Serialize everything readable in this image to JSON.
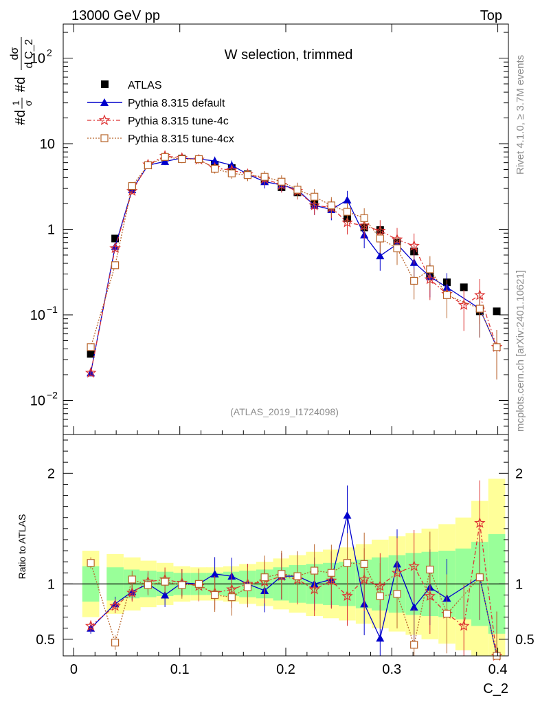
{
  "header": {
    "energy": "13000 GeV pp",
    "process": "Top"
  },
  "side": {
    "rivet": "Rivet 4.1.0, ≥ 3.7M events",
    "mcplots": "mcplots.cern.ch [arXiv:2401.10621]"
  },
  "chart_data": {
    "type": "scatter",
    "title": "W selection, trimmed",
    "analysis_id": "(ATLAS_2019_I1724098)",
    "xlabel": "C_2",
    "ylabel": "#d1/σ #dσ/d C_2",
    "ylabel_parts": {
      "a": "#d",
      "frac1_num": "1",
      "frac1_den": "σ",
      "b": "#d",
      "frac2_num": "dσ",
      "frac2_den": "d C_2"
    },
    "ratio_ylabel": "Ratio to ATLAS",
    "xlim": [
      -0.01,
      0.41
    ],
    "ylim_main": [
      0.004,
      250
    ],
    "ylim_ratio": [
      0.35,
      2.35
    ],
    "x_ticks": [
      "0",
      "0.1",
      "0.2",
      "0.3",
      "0.4"
    ],
    "y_ticks_main": [
      {
        "value": 0.01,
        "base": "10",
        "exp": "−2"
      },
      {
        "value": 0.1,
        "base": "10",
        "exp": "−1"
      },
      {
        "value": 1,
        "base": "1",
        "exp": ""
      },
      {
        "value": 10,
        "base": "10",
        "exp": ""
      },
      {
        "value": 100,
        "base": "10",
        "exp": "2"
      }
    ],
    "y_ticks_ratio": [
      "0.5",
      "1",
      "2"
    ],
    "x": [
      0.016,
      0.039,
      0.055,
      0.07,
      0.086,
      0.102,
      0.118,
      0.133,
      0.149,
      0.164,
      0.18,
      0.196,
      0.211,
      0.227,
      0.243,
      0.258,
      0.274,
      0.289,
      0.305,
      0.321,
      0.336,
      0.352,
      0.368,
      0.383,
      0.399
    ],
    "series": [
      {
        "name": "ATLAS",
        "color": "#000000",
        "marker": "square",
        "values": [
          0.035,
          0.78,
          3.1,
          5.6,
          6.9,
          6.7,
          6.6,
          5.7,
          5.2,
          4.4,
          3.8,
          3.1,
          2.7,
          2.0,
          1.75,
          1.35,
          1.05,
          0.98,
          0.7,
          0.55,
          0.3,
          0.24,
          0.21,
          0.11,
          0.11
        ],
        "ratio": [
          1,
          1,
          1,
          1,
          1,
          1,
          1,
          1,
          1,
          1,
          1,
          1,
          1,
          1,
          1,
          1,
          1,
          1,
          1,
          1,
          1,
          1,
          1,
          1,
          1
        ]
      },
      {
        "name": "Pythia 8.315 default",
        "color": "#0000cc",
        "marker": "triangle",
        "values": [
          0.021,
          0.63,
          2.9,
          5.6,
          6.2,
          6.8,
          6.6,
          6.3,
          5.6,
          4.4,
          3.6,
          3.3,
          2.9,
          1.9,
          1.7,
          2.2,
          0.86,
          0.49,
          0.67,
          0.41,
          0.28,
          0.21,
          null,
          0.118,
          0.042
        ],
        "ratio": [
          0.6,
          0.82,
          0.93,
          1.0,
          0.9,
          1.01,
          1.0,
          1.09,
          1.07,
          1.0,
          0.94,
          1.07,
          1.07,
          1.0,
          1.04,
          1.62,
          0.82,
          0.51,
          1.18,
          0.79,
          0.97,
          0.87,
          null,
          1.06,
          0.35
        ]
      },
      {
        "name": "Pythia 8.315 tune-4c",
        "color": "#dd3333",
        "marker": "star",
        "values": [
          0.021,
          0.6,
          2.8,
          5.7,
          7.2,
          6.8,
          6.5,
          5.2,
          4.9,
          4.4,
          3.9,
          3.3,
          2.8,
          1.9,
          1.8,
          1.2,
          1.1,
          0.96,
          0.76,
          0.64,
          0.26,
          0.175,
          0.13,
          0.17,
          0.042
        ],
        "ratio": [
          0.62,
          0.8,
          0.92,
          1.02,
          1.04,
          1.01,
          0.98,
          0.92,
          0.95,
          1.0,
          1.02,
          1.07,
          1.04,
          0.95,
          1.03,
          0.89,
          1.04,
          0.98,
          1.1,
          1.16,
          0.89,
          0.73,
          0.62,
          1.55,
          0.35
        ]
      },
      {
        "name": "Pythia 8.315 tune-4cx",
        "color": "#b8642a",
        "marker": "open-square",
        "values": [
          0.042,
          0.38,
          3.2,
          5.6,
          7.0,
          6.6,
          6.6,
          5.1,
          4.5,
          4.3,
          4.1,
          3.6,
          2.9,
          2.4,
          1.9,
          1.6,
          1.35,
          0.78,
          0.6,
          0.25,
          0.34,
          0.17,
          null,
          0.118,
          0.042
        ],
        "ratio": [
          1.19,
          0.47,
          1.04,
          0.99,
          1.02,
          0.99,
          1.0,
          0.9,
          0.88,
          0.97,
          1.06,
          1.09,
          1.07,
          1.12,
          1.1,
          1.19,
          1.18,
          0.89,
          0.91,
          0.45,
          1.13,
          0.73,
          null,
          1.06,
          0.35
        ]
      }
    ],
    "error_band": {
      "green_half_width": [
        0.16,
        0.15,
        0.13,
        0.12,
        0.11,
        0.1,
        0.1,
        0.1,
        0.11,
        0.12,
        0.13,
        0.15,
        0.17,
        0.18,
        0.19,
        0.2,
        0.22,
        0.24,
        0.26,
        0.28,
        0.29,
        0.3,
        0.32,
        0.38,
        0.45
      ],
      "yellow_half_width": [
        0.3,
        0.27,
        0.24,
        0.21,
        0.19,
        0.16,
        0.15,
        0.15,
        0.16,
        0.18,
        0.2,
        0.23,
        0.26,
        0.29,
        0.31,
        0.33,
        0.36,
        0.4,
        0.43,
        0.46,
        0.5,
        0.54,
        0.6,
        0.75,
        0.95
      ]
    },
    "legend_position": "top-left"
  }
}
